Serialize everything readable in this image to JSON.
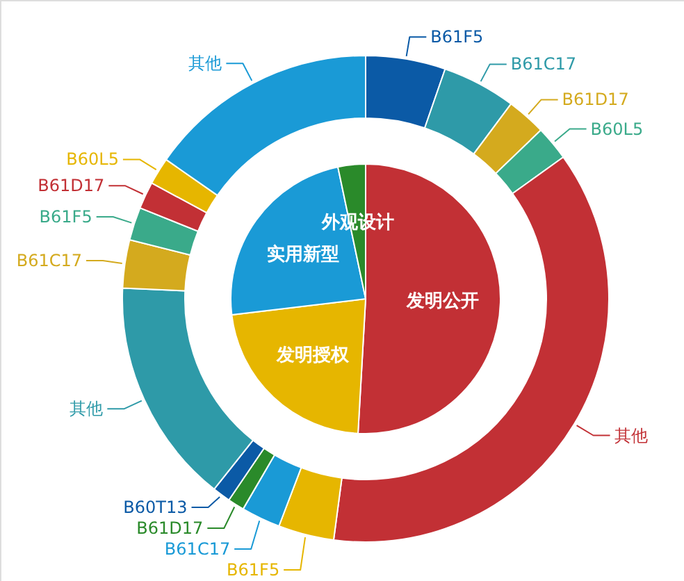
{
  "chart_data": [
    {
      "type": "pie",
      "categories": [
        "发明公开",
        "发明授权",
        "实用新型",
        "外观设计"
      ],
      "values": [
        50.9,
        22.2,
        23.6,
        3.3
      ],
      "colors": [
        "#c23035",
        "#e6b600",
        "#1a9ad6",
        "#2a8a2a"
      ]
    },
    {
      "type": "donut",
      "categories": [
        "B61F5",
        "B61C17",
        "B61D17",
        "B60L5",
        "其他",
        "B61F5",
        "B61C17",
        "B61D17",
        "B60T13",
        "其他",
        "B61C17",
        "B61F5",
        "B61D17",
        "B60L5",
        "其他"
      ],
      "values": [
        5.3,
        4.9,
        2.6,
        2.3,
        37.0,
        3.7,
        2.6,
        1.1,
        1.2,
        15.0,
        3.2,
        2.2,
        1.8,
        1.8,
        15.3
      ],
      "colors": [
        "#0b5aa6",
        "#2e9aa8",
        "#d4aa1e",
        "#3aaa8a",
        "#c23035",
        "#e6b600",
        "#1a9ad6",
        "#2a8a2a",
        "#0b5aa6",
        "#2e9aa8",
        "#d4aa1e",
        "#3aaa8a",
        "#c23035",
        "#e6b600",
        "#1a9ad6"
      ]
    }
  ]
}
